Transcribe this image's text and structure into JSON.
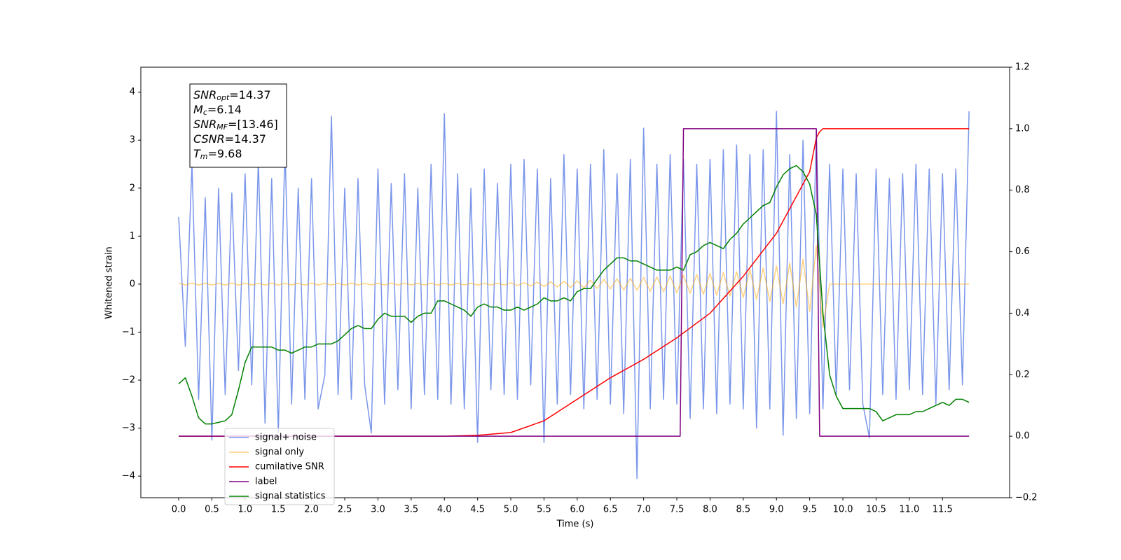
{
  "chart_data": {
    "type": "line",
    "xlabel": "Time (s)",
    "ylabel": "Whitened strain",
    "xlim": [
      -0.57,
      12.51
    ],
    "ylim": [
      -4.45,
      4.52
    ],
    "y2lim": [
      -0.2,
      1.2
    ],
    "xticks": [
      {
        "value": 0,
        "label": "0.0"
      },
      0.5,
      {
        "value": 1,
        "label": "1.0"
      },
      1.5,
      {
        "value": 2,
        "label": "2.0"
      },
      2.5,
      {
        "value": 3,
        "label": "3.0"
      },
      3.5,
      {
        "value": 4,
        "label": "4.0"
      },
      4.5,
      {
        "value": 5,
        "label": "5.0"
      },
      5.5,
      {
        "value": 6,
        "label": "6.0"
      },
      6.5,
      {
        "value": 7,
        "label": "7.0"
      },
      7.5,
      {
        "value": 8,
        "label": "8.0"
      },
      8.5,
      {
        "value": 9,
        "label": "9.0"
      },
      9.5,
      {
        "value": 10,
        "label": "10.0"
      },
      10.5,
      {
        "value": 11,
        "label": "11.0"
      },
      11.5
    ],
    "yticks": [
      {
        "value": -4,
        "label": "−4"
      },
      {
        "value": -3,
        "label": "−3"
      },
      {
        "value": -2,
        "label": "−2"
      },
      {
        "value": -1,
        "label": "−1"
      },
      0,
      1,
      2,
      3,
      4
    ],
    "y2ticks": [
      {
        "value": -0.2,
        "label": "−0.2"
      },
      {
        "value": 0,
        "label": "0.0"
      },
      0.2,
      0.4,
      0.6,
      0.8,
      {
        "value": 1,
        "label": "1.0"
      },
      1.2
    ],
    "annotation": [
      {
        "symbol": "SNR",
        "subscript": "opt",
        "value_text": "=14.37"
      },
      {
        "symbol": "M",
        "subscript": "c",
        "value_text": "=6.14"
      },
      {
        "symbol": "SNR",
        "subscript": "MF",
        "value_text": "=[13.46]"
      },
      {
        "symbol": "CSNR",
        "value_text": "=14.37"
      },
      {
        "symbol": "T",
        "subscript": "m",
        "value_text": "=9.68"
      }
    ],
    "x": [
      0,
      0.1,
      0.2,
      0.3,
      0.4,
      0.5,
      0.6,
      0.7,
      0.8,
      0.9,
      1,
      1.1,
      1.2,
      1.3,
      1.4,
      1.5,
      1.6,
      1.7,
      1.8,
      1.9,
      2,
      2.1,
      2.2,
      2.3,
      2.4,
      2.5,
      2.6,
      2.7,
      2.8,
      2.9,
      3,
      3.1,
      3.2,
      3.3,
      3.4,
      3.5,
      3.6,
      3.7,
      3.8,
      3.9,
      4,
      4.1,
      4.2,
      4.3,
      4.4,
      4.5,
      4.6,
      4.7,
      4.8,
      4.9,
      5,
      5.1,
      5.2,
      5.3,
      5.4,
      5.5,
      5.6,
      5.7,
      5.8,
      5.9,
      6,
      6.1,
      6.2,
      6.3,
      6.4,
      6.5,
      6.6,
      6.7,
      6.8,
      6.9,
      7,
      7.1,
      7.2,
      7.3,
      7.4,
      7.5,
      7.6,
      7.7,
      7.8,
      7.9,
      8,
      8.1,
      8.2,
      8.3,
      8.4,
      8.5,
      8.6,
      8.7,
      8.8,
      8.9,
      9,
      9.1,
      9.2,
      9.3,
      9.4,
      9.5,
      9.6,
      9.7,
      9.8,
      9.9,
      10,
      10.1,
      10.2,
      10.3,
      10.4,
      10.5,
      10.6,
      10.7,
      10.8,
      10.9,
      11,
      11.1,
      11.2,
      11.3,
      11.4,
      11.5,
      11.6,
      11.7,
      11.8,
      11.9
    ],
    "series": [
      {
        "name": "signal+ noise",
        "color": "#4169e1",
        "values": [
          1.4,
          -1.3,
          2.5,
          -2.4,
          1.8,
          -3.25,
          2.0,
          -2.3,
          1.9,
          -1.8,
          2.3,
          -2.1,
          2.6,
          -2.9,
          2.2,
          -3.1,
          2.9,
          -2.5,
          2.0,
          -2.4,
          2.2,
          -2.6,
          -1.9,
          3.5,
          -2.3,
          2.0,
          -2.4,
          2.2,
          -2.1,
          -3.1,
          2.4,
          -2.5,
          2.1,
          -2.2,
          2.3,
          -2.6,
          2.0,
          -2.3,
          2.5,
          -2.4,
          3.55,
          -2.5,
          2.3,
          -2.6,
          2.0,
          -3.3,
          2.4,
          -2.2,
          2.1,
          -2.3,
          2.5,
          -2.4,
          2.6,
          -2.1,
          2.4,
          -3.3,
          2.2,
          -2.5,
          2.7,
          -2.3,
          2.4,
          -2.6,
          2.5,
          -2.4,
          2.8,
          -2.5,
          2.3,
          -2.7,
          2.6,
          -4.05,
          3.25,
          -2.6,
          2.5,
          -2.4,
          2.7,
          -2.5,
          2.6,
          -2.8,
          2.5,
          -2.6,
          2.6,
          -2.7,
          2.8,
          -2.5,
          2.9,
          -2.6,
          2.7,
          -3.0,
          2.8,
          -2.6,
          3.6,
          -3.15,
          2.7,
          -2.8,
          3.0,
          -2.7,
          3.2,
          -2.6,
          2.5,
          -2.3,
          2.4,
          -2.2,
          2.3,
          -2.5,
          -3.2,
          2.4,
          -2.3,
          2.2,
          -2.4,
          2.3,
          -2.2,
          2.5,
          -2.3,
          2.4,
          -2.5,
          2.3,
          -2.2,
          2.4,
          -2.1,
          3.6
        ]
      },
      {
        "name": "signal only",
        "color": "#ffa500",
        "values": [
          0.02,
          -0.02,
          0.02,
          -0.02,
          0.02,
          -0.02,
          0.02,
          -0.02,
          0.02,
          -0.02,
          0.02,
          -0.02,
          0.02,
          -0.02,
          0.02,
          -0.02,
          0.02,
          -0.02,
          0.02,
          -0.02,
          0.02,
          -0.02,
          0.02,
          -0.02,
          0.02,
          -0.02,
          0.02,
          -0.02,
          0.02,
          -0.02,
          0.02,
          -0.02,
          0.02,
          -0.02,
          0.02,
          -0.02,
          0.02,
          -0.02,
          0.02,
          -0.02,
          0.02,
          -0.02,
          0.02,
          -0.02,
          0.02,
          -0.02,
          0.02,
          -0.02,
          0.02,
          -0.02,
          0.03,
          -0.03,
          0.03,
          -0.04,
          0.04,
          -0.05,
          0.05,
          -0.06,
          0.06,
          -0.07,
          0.07,
          -0.08,
          0.08,
          -0.09,
          0.1,
          -0.1,
          0.11,
          -0.12,
          0.12,
          -0.13,
          0.14,
          -0.15,
          0.15,
          -0.16,
          0.17,
          -0.18,
          0.18,
          -0.19,
          0.2,
          -0.21,
          0.22,
          -0.23,
          0.24,
          -0.25,
          0.26,
          -0.28,
          0.3,
          -0.32,
          0.34,
          -0.36,
          0.38,
          -0.41,
          0.44,
          -0.48,
          0.52,
          -0.57,
          0.8,
          -0.9,
          0,
          0,
          0,
          0,
          0,
          0,
          0,
          0,
          0,
          0,
          0,
          0,
          0,
          0,
          0,
          0,
          0,
          0,
          0,
          0,
          0,
          0
        ]
      },
      {
        "name": "cumilative SNR",
        "color": "#ff0000",
        "axis": "y2",
        "x": [
          0,
          4,
          4.5,
          5,
          5.5,
          6,
          6.5,
          7,
          7.5,
          8,
          8.5,
          9,
          9.5,
          9.6,
          9.65,
          9.7,
          11.9
        ],
        "values": [
          0,
          0,
          0.003,
          0.012,
          0.05,
          0.12,
          0.19,
          0.25,
          0.32,
          0.4,
          0.52,
          0.66,
          0.86,
          0.97,
          0.99,
          1,
          1
        ]
      },
      {
        "name": "label",
        "color": "#800080",
        "axis": "y2",
        "x": [
          0,
          7.55,
          7.6,
          9.6,
          9.65,
          11.9
        ],
        "values": [
          0,
          0,
          1,
          1,
          0,
          0
        ]
      },
      {
        "name": "signal statistics",
        "color": "#008000",
        "axis": "y2",
        "values": [
          0.17,
          0.19,
          0.13,
          0.06,
          0.04,
          0.04,
          0.045,
          0.05,
          0.07,
          0.15,
          0.24,
          0.29,
          0.29,
          0.29,
          0.29,
          0.28,
          0.28,
          0.27,
          0.28,
          0.29,
          0.29,
          0.3,
          0.3,
          0.3,
          0.31,
          0.33,
          0.35,
          0.36,
          0.35,
          0.35,
          0.38,
          0.4,
          0.39,
          0.39,
          0.39,
          0.37,
          0.39,
          0.4,
          0.4,
          0.44,
          0.44,
          0.43,
          0.42,
          0.41,
          0.39,
          0.42,
          0.43,
          0.42,
          0.42,
          0.41,
          0.41,
          0.42,
          0.41,
          0.42,
          0.43,
          0.45,
          0.44,
          0.44,
          0.45,
          0.44,
          0.47,
          0.48,
          0.48,
          0.51,
          0.54,
          0.56,
          0.58,
          0.58,
          0.57,
          0.57,
          0.56,
          0.55,
          0.54,
          0.54,
          0.54,
          0.55,
          0.54,
          0.59,
          0.6,
          0.62,
          0.63,
          0.62,
          0.61,
          0.64,
          0.66,
          0.69,
          0.71,
          0.73,
          0.75,
          0.76,
          0.81,
          0.85,
          0.87,
          0.88,
          0.86,
          0.82,
          0.72,
          0.4,
          0.2,
          0.13,
          0.09,
          0.09,
          0.09,
          0.09,
          0.09,
          0.08,
          0.05,
          0.06,
          0.07,
          0.07,
          0.07,
          0.08,
          0.08,
          0.09,
          0.1,
          0.11,
          0.1,
          0.12,
          0.12,
          0.11
        ]
      }
    ]
  }
}
